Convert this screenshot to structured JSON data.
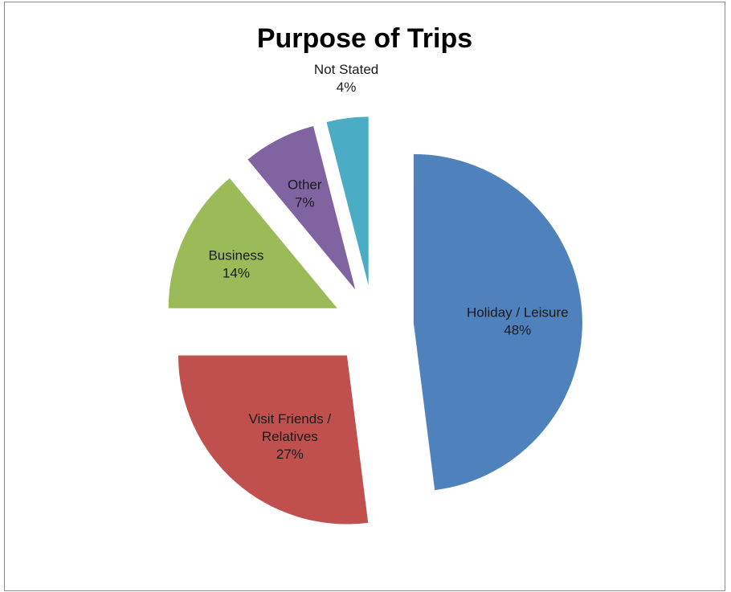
{
  "chart_data": {
    "type": "pie",
    "title": "Purpose of Trips",
    "exploded": true,
    "legend": "none",
    "slices": [
      {
        "label": "Holiday / Leisure",
        "label_lines": [
          "Holiday / Leisure"
        ],
        "value": 48,
        "value_label": "48%",
        "color": "#4F81BD"
      },
      {
        "label": "Visit Friends / Relatives",
        "label_lines": [
          "Visit Friends /",
          "Relatives"
        ],
        "value": 27,
        "value_label": "27%",
        "color": "#C0504D"
      },
      {
        "label": "Business",
        "label_lines": [
          "Business"
        ],
        "value": 14,
        "value_label": "14%",
        "color": "#9BBB59"
      },
      {
        "label": "Other",
        "label_lines": [
          "Other"
        ],
        "value": 7,
        "value_label": "7%",
        "color": "#8064A2"
      },
      {
        "label": "Not Stated",
        "label_lines": [
          "Not Stated"
        ],
        "value": 4,
        "value_label": "4%",
        "color": "#4BACC6"
      }
    ]
  }
}
